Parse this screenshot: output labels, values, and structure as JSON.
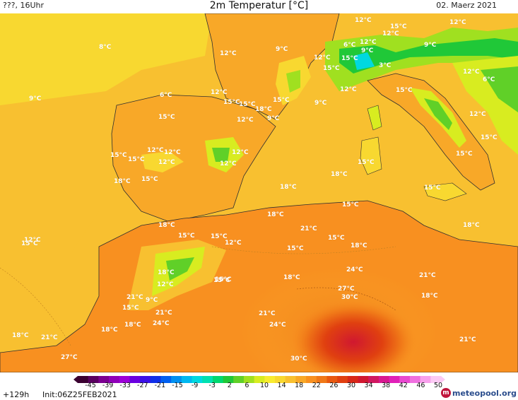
{
  "header": {
    "left": "???, 16Uhr",
    "title": "2m Temperatur [°C]",
    "date": "02. Maerz 2021"
  },
  "map": {
    "labels": [
      {
        "t": "12°C"
      },
      {
        "t": "12°C"
      },
      {
        "t": "15°C"
      },
      {
        "t": "12°C"
      },
      {
        "t": "8°C"
      },
      {
        "t": "12°C"
      },
      {
        "t": "9°C"
      },
      {
        "t": "6°C"
      },
      {
        "t": "12°C"
      },
      {
        "t": "12°C"
      },
      {
        "t": "15°C"
      },
      {
        "t": "15°C"
      },
      {
        "t": "9°C"
      },
      {
        "t": "3°C"
      },
      {
        "t": "9°C"
      },
      {
        "t": "12°C"
      },
      {
        "t": "9°C"
      },
      {
        "t": "6°C"
      },
      {
        "t": "12°C"
      },
      {
        "t": "15°C"
      },
      {
        "t": "15°C"
      },
      {
        "t": "18°C"
      },
      {
        "t": "15°C"
      },
      {
        "t": "9°C"
      },
      {
        "t": "12°C"
      },
      {
        "t": "15°C"
      },
      {
        "t": "6°C"
      },
      {
        "t": "12°C"
      },
      {
        "t": "9°C"
      },
      {
        "t": "15°C"
      },
      {
        "t": "15°C"
      },
      {
        "t": "12°C"
      },
      {
        "t": "12°C"
      },
      {
        "t": "15°C"
      },
      {
        "t": "18°C"
      },
      {
        "t": "15°C"
      },
      {
        "t": "12°C"
      },
      {
        "t": "12°C"
      },
      {
        "t": "12°C"
      },
      {
        "t": "12°C"
      },
      {
        "t": "15°C"
      },
      {
        "t": "18°C"
      },
      {
        "t": "18°C"
      },
      {
        "t": "15°C"
      },
      {
        "t": "15°C"
      },
      {
        "t": "15°C"
      },
      {
        "t": "12°C"
      },
      {
        "t": "15°C"
      },
      {
        "t": "18°C"
      },
      {
        "t": "18°C"
      },
      {
        "t": "15°C"
      },
      {
        "t": "18°C"
      },
      {
        "t": "21°C"
      },
      {
        "t": "15°C"
      },
      {
        "t": "15°C"
      },
      {
        "t": "15°C"
      },
      {
        "t": "12°C"
      },
      {
        "t": "18°C"
      },
      {
        "t": "15°C"
      },
      {
        "t": "18°C"
      },
      {
        "t": "12°C"
      },
      {
        "t": "15°C"
      },
      {
        "t": "18°C"
      },
      {
        "t": "24°C"
      },
      {
        "t": "21°C"
      },
      {
        "t": "21°C"
      },
      {
        "t": "9°C"
      },
      {
        "t": "27°C"
      },
      {
        "t": "30°C"
      },
      {
        "t": "18°C"
      },
      {
        "t": "15°C"
      },
      {
        "t": "18°C"
      },
      {
        "t": "21°C"
      },
      {
        "t": "21°C"
      },
      {
        "t": "24°C"
      },
      {
        "t": "24°C"
      },
      {
        "t": "15°C"
      },
      {
        "t": "18°C"
      },
      {
        "t": "18°C"
      },
      {
        "t": "21°C"
      },
      {
        "t": "21°C"
      },
      {
        "t": "27°C"
      },
      {
        "t": "30°C"
      }
    ]
  },
  "colorbar": {
    "ticks": [
      "-45",
      "-39",
      "-33",
      "-27",
      "-21",
      "-15",
      "-9",
      "-3",
      "2",
      "6",
      "10",
      "14",
      "18",
      "22",
      "26",
      "30",
      "34",
      "38",
      "42",
      "46",
      "50"
    ],
    "colors": [
      "#3a0030",
      "#5a0060",
      "#7a0090",
      "#8f00b8",
      "#9c00d8",
      "#6a00e0",
      "#3a10e8",
      "#1030e8",
      "#0060f0",
      "#0090f0",
      "#00b8f0",
      "#00d8e0",
      "#00e0b0",
      "#00d870",
      "#20c838",
      "#60d028",
      "#a0e020",
      "#d8ec20",
      "#f8ec30",
      "#f8d830",
      "#f8c030",
      "#f8a828",
      "#f89020",
      "#f07818",
      "#e85810",
      "#e04010",
      "#d82818",
      "#d01830",
      "#d01860",
      "#d81890",
      "#e020b8",
      "#e848d0",
      "#f070e0",
      "#f8a0ec",
      "#fccaf4"
    ]
  },
  "footer": {
    "step": "+129h",
    "init": "Init:06Z25FEB2021",
    "logo_mark": "m",
    "logo_text": "meteopool.org"
  }
}
